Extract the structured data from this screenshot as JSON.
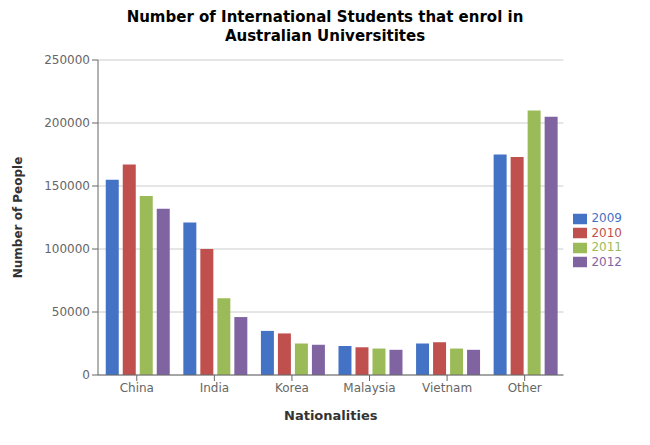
{
  "chart_data": {
    "type": "bar",
    "title": "Number of International Students that enrol in\nAustralian Universitites",
    "xlabel": "Nationalities",
    "ylabel": "Number of People",
    "categories": [
      "China",
      "India",
      "Korea",
      "Malaysia",
      "Vietnam",
      "Other"
    ],
    "series": [
      {
        "name": "2009",
        "color": "#4472C4",
        "values": [
          155000,
          121000,
          35000,
          23000,
          25000,
          175000
        ]
      },
      {
        "name": "2010",
        "color": "#C0504D",
        "values": [
          167000,
          100000,
          33000,
          22000,
          26000,
          173000
        ]
      },
      {
        "name": "2011",
        "color": "#9BBB59",
        "values": [
          142000,
          61000,
          25000,
          21000,
          21000,
          210000
        ]
      },
      {
        "name": "2012",
        "color": "#8064A2",
        "values": [
          132000,
          46000,
          24000,
          20000,
          20000,
          205000
        ]
      }
    ],
    "ylim": [
      0,
      250000
    ],
    "yticks": [
      0,
      50000,
      100000,
      150000,
      200000,
      250000
    ],
    "grid": true,
    "legend": "right"
  }
}
